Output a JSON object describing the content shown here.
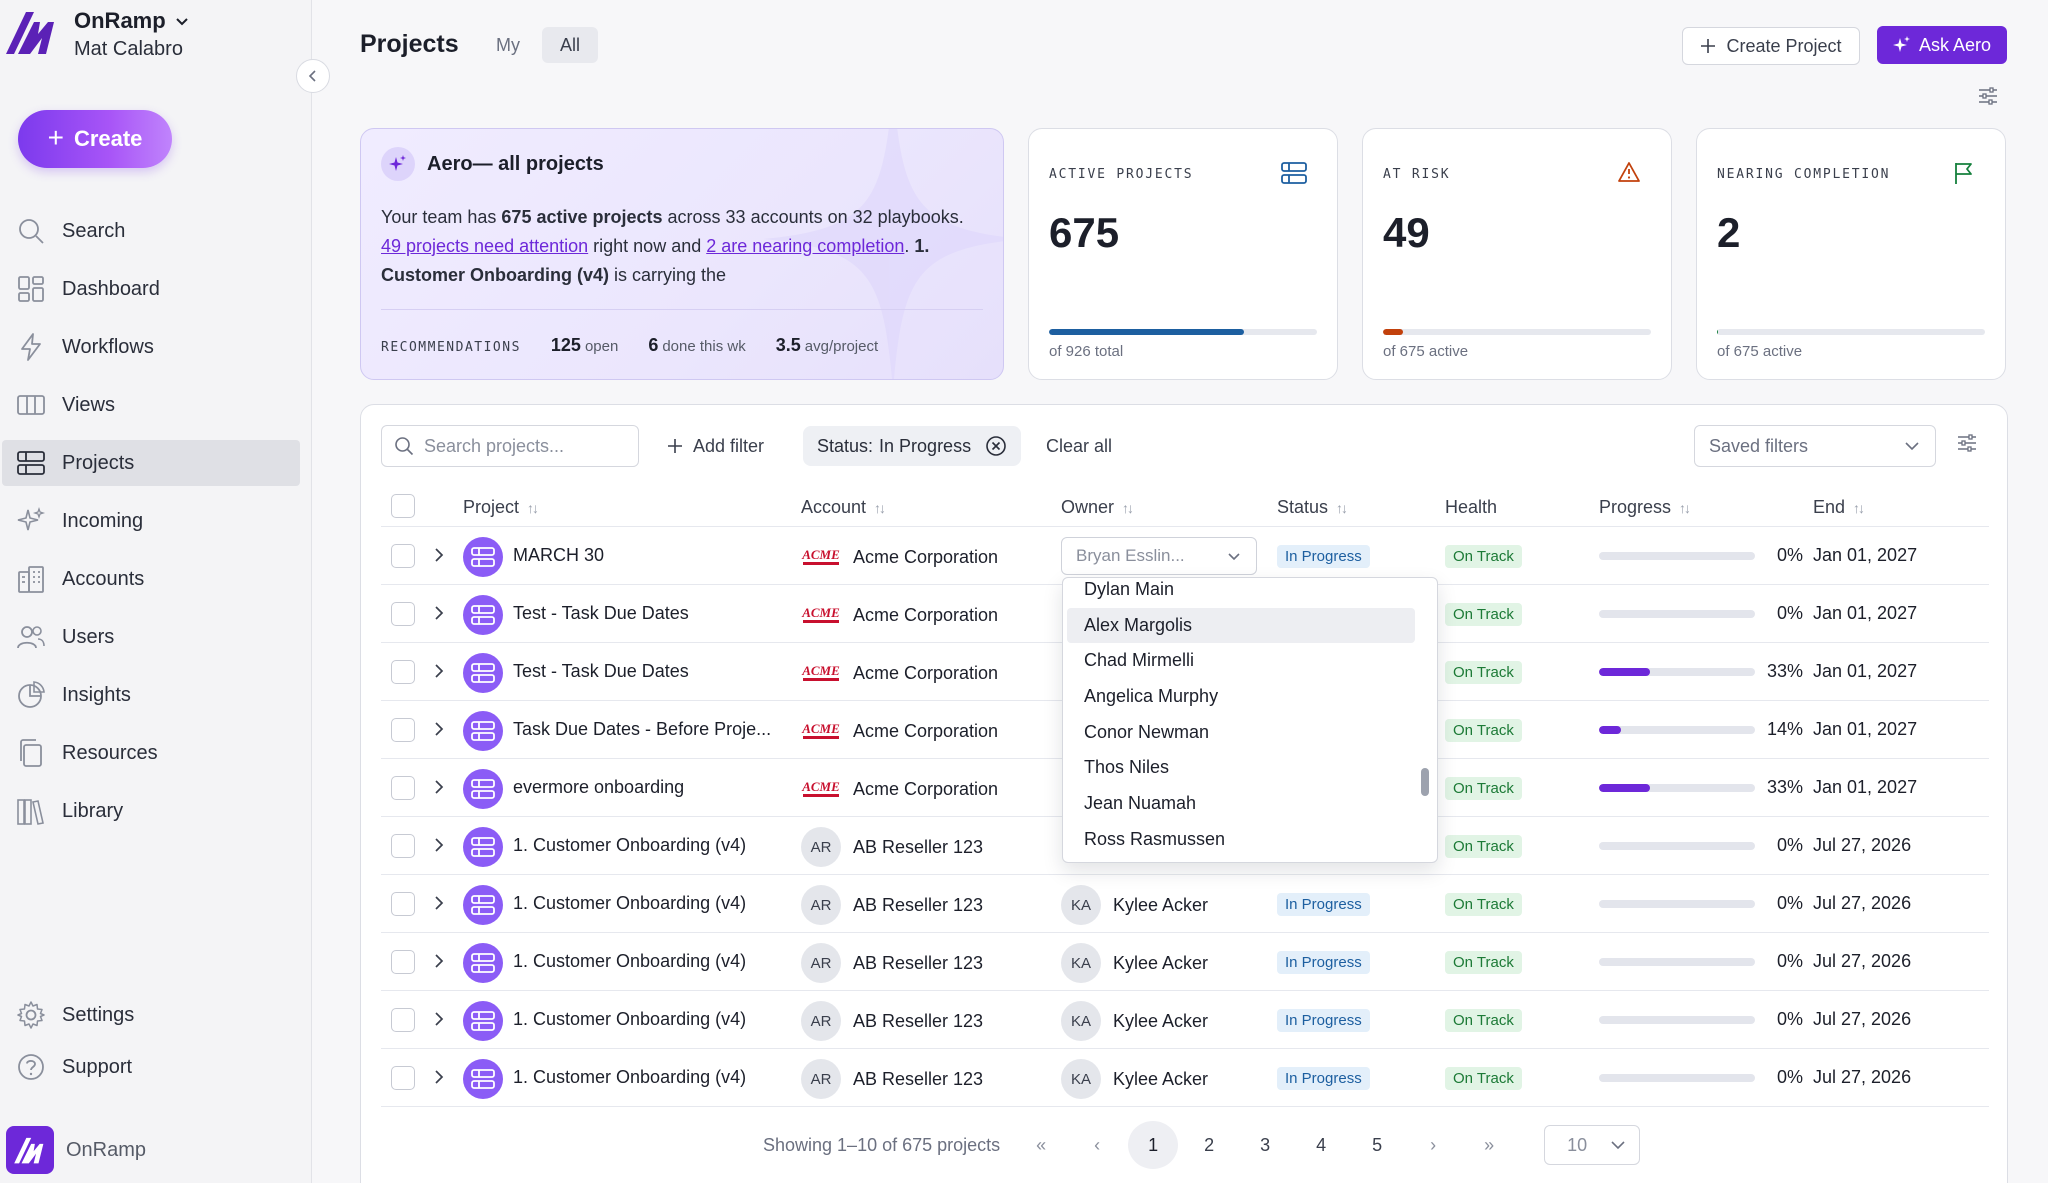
{
  "org": {
    "name": "OnRamp",
    "user": "Mat Calabro"
  },
  "sidebar": {
    "create_label": "Create",
    "items": [
      {
        "label": "Search",
        "icon": "search-icon"
      },
      {
        "label": "Dashboard",
        "icon": "dashboard-icon"
      },
      {
        "label": "Workflows",
        "icon": "bolt-icon"
      },
      {
        "label": "Views",
        "icon": "columns-icon"
      },
      {
        "label": "Projects",
        "icon": "projects-icon"
      },
      {
        "label": "Incoming",
        "icon": "sparkle-icon"
      },
      {
        "label": "Accounts",
        "icon": "building-icon"
      },
      {
        "label": "Users",
        "icon": "users-icon"
      },
      {
        "label": "Insights",
        "icon": "pie-chart-icon"
      },
      {
        "label": "Resources",
        "icon": "copy-icon"
      },
      {
        "label": "Library",
        "icon": "library-icon"
      }
    ],
    "bottom": [
      {
        "label": "Settings",
        "icon": "gear-icon"
      },
      {
        "label": "Support",
        "icon": "help-icon"
      }
    ],
    "footer_brand": "OnRamp"
  },
  "header": {
    "title": "Projects",
    "tabs": [
      "My",
      "All"
    ],
    "active_tab": "All",
    "create_project_label": "Create Project",
    "ask_aero_label": "Ask Aero"
  },
  "aero": {
    "title": "Aero— all projects",
    "text_1": "Your team has ",
    "bold_1": "675 active projects",
    "text_2": " across 33 accounts on 32 playbooks. ",
    "link_1": "49 projects need attention",
    "text_3": " right now and ",
    "link_2": "2 are nearing completion",
    "text_4": ". ",
    "bold_2": "1. Customer Onboarding (v4)",
    "text_5": " is carrying the",
    "rec_label": "RECOMMENDATIONS",
    "stats": [
      {
        "value": "125",
        "label": "open"
      },
      {
        "value": "6",
        "label": "done this wk"
      },
      {
        "value": "3.5",
        "label": "avg/project"
      }
    ]
  },
  "stats": [
    {
      "label": "ACTIVE PROJECTS",
      "value": "675",
      "sub": "of 926 total",
      "fraction": 0.729,
      "color": "#1d5fa0",
      "icon": "projects-icon"
    },
    {
      "label": "AT RISK",
      "value": "49",
      "sub": "of 675 active",
      "fraction": 0.073,
      "color": "#c2410c",
      "icon": "warning-icon"
    },
    {
      "label": "NEARING COMPLETION",
      "value": "2",
      "sub": "of 675 active",
      "fraction": 0.003,
      "color": "#15803d",
      "icon": "flag-icon"
    }
  ],
  "toolbar": {
    "search_placeholder": "Search projects...",
    "add_filter": "Add filter",
    "status_chip_key": "Status:",
    "status_chip_value": "In Progress",
    "clear_all": "Clear all",
    "saved_filters": "Saved filters"
  },
  "columns": [
    "Project",
    "Account",
    "Owner",
    "Status",
    "Health",
    "Progress",
    "End"
  ],
  "rows": [
    {
      "project": "MARCH 30",
      "account": "Acme Corporation",
      "account_logo": "acme",
      "owner": "Bryan Esslin...",
      "owner_initials": "",
      "owner_editing": true,
      "status": "In Progress",
      "health": "On Track",
      "progress": 0,
      "progress_label": "0%",
      "end": "Jan 01, 2027"
    },
    {
      "project": "Test - Task Due Dates",
      "account": "Acme Corporation",
      "account_logo": "acme",
      "owner": "",
      "owner_initials": "",
      "owner_editing": false,
      "status": "",
      "health": "On Track",
      "progress": 0,
      "progress_label": "0%",
      "end": "Jan 01, 2027"
    },
    {
      "project": "Test - Task Due Dates",
      "account": "Acme Corporation",
      "account_logo": "acme",
      "owner": "",
      "owner_initials": "",
      "owner_editing": false,
      "status": "",
      "health": "On Track",
      "progress": 33,
      "progress_label": "33%",
      "end": "Jan 01, 2027"
    },
    {
      "project": "Task Due Dates - Before Proje...",
      "account": "Acme Corporation",
      "account_logo": "acme",
      "owner": "",
      "owner_initials": "",
      "owner_editing": false,
      "status": "",
      "health": "On Track",
      "progress": 14,
      "progress_label": "14%",
      "end": "Jan 01, 2027"
    },
    {
      "project": "evermore onboarding",
      "account": "Acme Corporation",
      "account_logo": "acme",
      "owner": "",
      "owner_initials": "",
      "owner_editing": false,
      "status": "",
      "health": "On Track",
      "progress": 33,
      "progress_label": "33%",
      "end": "Jan 01, 2027"
    },
    {
      "project": "1. Customer Onboarding (v4)",
      "account": "AB Reseller 123",
      "account_logo": "AR",
      "owner": "",
      "owner_initials": "",
      "owner_editing": false,
      "status": "",
      "health": "On Track",
      "progress": 0,
      "progress_label": "0%",
      "end": "Jul 27, 2026"
    },
    {
      "project": "1. Customer Onboarding (v4)",
      "account": "AB Reseller 123",
      "account_logo": "AR",
      "owner": "Kylee Acker",
      "owner_initials": "KA",
      "owner_editing": false,
      "status": "In Progress",
      "health": "On Track",
      "progress": 0,
      "progress_label": "0%",
      "end": "Jul 27, 2026"
    },
    {
      "project": "1. Customer Onboarding (v4)",
      "account": "AB Reseller 123",
      "account_logo": "AR",
      "owner": "Kylee Acker",
      "owner_initials": "KA",
      "owner_editing": false,
      "status": "In Progress",
      "health": "On Track",
      "progress": 0,
      "progress_label": "0%",
      "end": "Jul 27, 2026"
    },
    {
      "project": "1. Customer Onboarding (v4)",
      "account": "AB Reseller 123",
      "account_logo": "AR",
      "owner": "Kylee Acker",
      "owner_initials": "KA",
      "owner_editing": false,
      "status": "In Progress",
      "health": "On Track",
      "progress": 0,
      "progress_label": "0%",
      "end": "Jul 27, 2026"
    },
    {
      "project": "1. Customer Onboarding (v4)",
      "account": "AB Reseller 123",
      "account_logo": "AR",
      "owner": "Kylee Acker",
      "owner_initials": "KA",
      "owner_editing": false,
      "status": "In Progress",
      "health": "On Track",
      "progress": 0,
      "progress_label": "0%",
      "end": "Jul 27, 2026"
    }
  ],
  "owner_dropdown": {
    "options": [
      "Dylan Main",
      "Alex Margolis",
      "Chad Mirmelli",
      "Angelica Murphy",
      "Conor Newman",
      "Thos Niles",
      "Jean Nuamah",
      "Ross Rasmussen"
    ],
    "highlighted": "Alex Margolis"
  },
  "pagination": {
    "summary": "Showing 1–10 of 675 projects",
    "pages": [
      "1",
      "2",
      "3",
      "4",
      "5"
    ],
    "current": "1",
    "per_page": "10"
  }
}
